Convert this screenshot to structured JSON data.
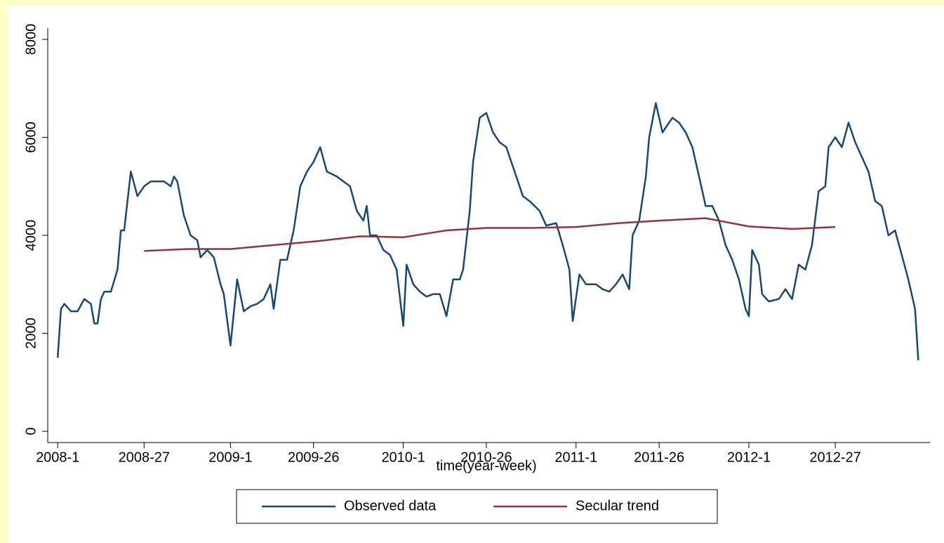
{
  "chart_data": {
    "type": "line",
    "xlabel": "time(year-week)",
    "xlim": [
      -3,
      262.5
    ],
    "xticks": [
      {
        "value": 0,
        "label": "2008-1"
      },
      {
        "value": 26,
        "label": "2008-27"
      },
      {
        "value": 52,
        "label": "2009-1"
      },
      {
        "value": 77,
        "label": "2009-26"
      },
      {
        "value": 104,
        "label": "2010-1"
      },
      {
        "value": 129,
        "label": "2010-26"
      },
      {
        "value": 156,
        "label": "2011-1"
      },
      {
        "value": 181,
        "label": "2011-26"
      },
      {
        "value": 208,
        "label": "2012-1"
      },
      {
        "value": 234,
        "label": "2012-27"
      }
    ],
    "ylim": [
      -230,
      8230
    ],
    "yticks": [
      0,
      2000,
      4000,
      6000,
      8000
    ],
    "legend": "bottom",
    "series": [
      {
        "name": "Observed data",
        "color": "#1a476f",
        "x": [
          0,
          1,
          2,
          4,
          6,
          8,
          9,
          10,
          11,
          12,
          13,
          14,
          16,
          18,
          19,
          20,
          22,
          24,
          26,
          28,
          30,
          32,
          34,
          35,
          36,
          38,
          40,
          42,
          43,
          45,
          47,
          49,
          50,
          52,
          54,
          56,
          58,
          60,
          62,
          64,
          65,
          67,
          69,
          71,
          73,
          75,
          77,
          79,
          81,
          84,
          86,
          88,
          90,
          92,
          93,
          94,
          96,
          98,
          100,
          102,
          104,
          105,
          107,
          109,
          111,
          113,
          115,
          117,
          119,
          121,
          122,
          124,
          125,
          127,
          129,
          131,
          133,
          135,
          138,
          140,
          142,
          145,
          147,
          150,
          152,
          154,
          155,
          157,
          159,
          162,
          164,
          166,
          168,
          170,
          172,
          173,
          175,
          177,
          178,
          180,
          182,
          185,
          187,
          189,
          191,
          193,
          195,
          197,
          199,
          201,
          203,
          205,
          207,
          208,
          209,
          211,
          212,
          214,
          217,
          219,
          221,
          223,
          225,
          227,
          229,
          231,
          232,
          234,
          236,
          238,
          240,
          242,
          244,
          246,
          248,
          250,
          252,
          254,
          256,
          258,
          259
        ],
        "values": [
          1500,
          2500,
          2600,
          2450,
          2450,
          2700,
          2650,
          2600,
          2200,
          2200,
          2700,
          2850,
          2850,
          3300,
          4100,
          4100,
          5300,
          4800,
          5000,
          5100,
          5100,
          5100,
          5000,
          5200,
          5100,
          4400,
          4000,
          3900,
          3550,
          3700,
          3550,
          3000,
          2800,
          1750,
          3100,
          2450,
          2550,
          2600,
          2700,
          3000,
          2500,
          3500,
          3500,
          4100,
          5000,
          5300,
          5500,
          5800,
          5300,
          5200,
          5100,
          5000,
          4500,
          4300,
          4600,
          4000,
          4000,
          3700,
          3600,
          3300,
          2150,
          3400,
          3000,
          2850,
          2750,
          2800,
          2800,
          2350,
          3100,
          3100,
          3300,
          4500,
          5500,
          6400,
          6500,
          6100,
          5900,
          5800,
          5200,
          4800,
          4700,
          4500,
          4200,
          4250,
          3800,
          3300,
          2250,
          3200,
          3000,
          3000,
          2900,
          2850,
          3000,
          3200,
          2900,
          4000,
          4300,
          5200,
          6000,
          6700,
          6100,
          6400,
          6300,
          6100,
          5800,
          5200,
          4600,
          4600,
          4300,
          3800,
          3500,
          3100,
          2500,
          2350,
          3700,
          3400,
          2800,
          2650,
          2700,
          2900,
          2700,
          3400,
          3300,
          3800,
          4900,
          5000,
          5800,
          6000,
          5800,
          6300,
          5900,
          5600,
          5300,
          4700,
          4600,
          4000,
          4100,
          3600,
          3100,
          2500,
          1450
        ]
      },
      {
        "name": "Secular trend",
        "color": "#90353b",
        "x": [
          26,
          39,
          52,
          65,
          78,
          91,
          104,
          117,
          129,
          143,
          156,
          169,
          181,
          195,
          208,
          221,
          234
        ],
        "values": [
          3680,
          3720,
          3720,
          3800,
          3880,
          3980,
          3960,
          4100,
          4150,
          4150,
          4170,
          4250,
          4300,
          4350,
          4180,
          4130,
          4170
        ]
      }
    ]
  }
}
